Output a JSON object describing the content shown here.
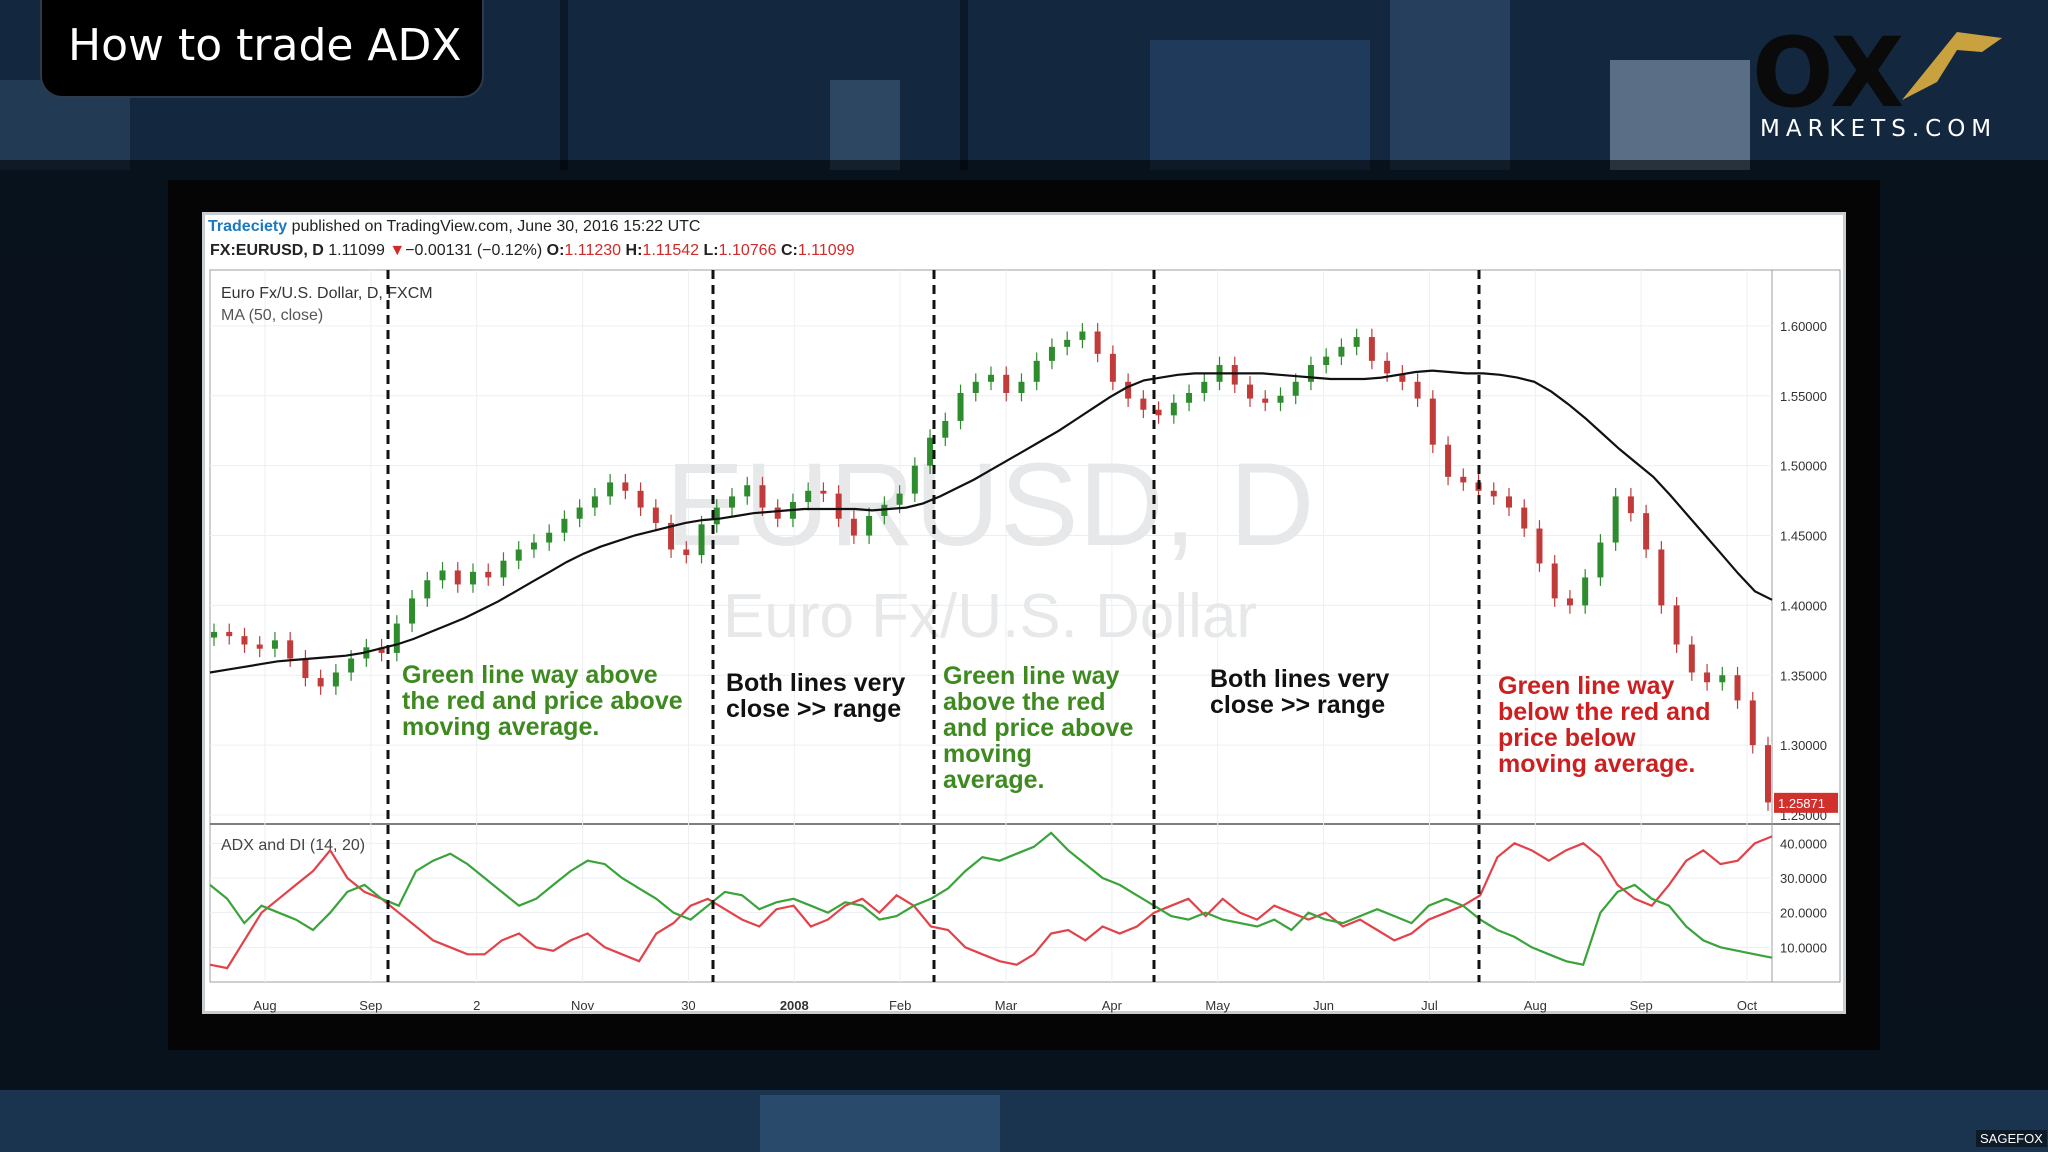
{
  "slide": {
    "title": "How to trade ADX",
    "logo_text": "OX",
    "logo_sub": "MARKETS.COM",
    "watermark_corner": "SAGEFOX"
  },
  "header": {
    "publisher": "Tradeciety",
    "published_line": " published on TradingView.com, June 30, 2016 15:22 UTC",
    "symbol": "FX:EURUSD, D",
    "last": "1.11099",
    "change": "−0.00131 (−0.12%)",
    "open_label": "O:",
    "open": "1.11230",
    "high_label": "H:",
    "high": "1.11542",
    "low_label": "L:",
    "low": "1.10766",
    "close_label": "C:",
    "close": "1.11099"
  },
  "chart_data": {
    "type": "line",
    "price_pane": {
      "legend_lines": [
        "Euro Fx/U.S. Dollar, D, FXCM",
        "MA (50, close)"
      ],
      "watermark_big": "EURUSD, D",
      "watermark_small": "Euro Fx/U.S. Dollar",
      "y_ticks": [
        "1.60000",
        "1.55000",
        "1.50000",
        "1.45000",
        "1.40000",
        "1.35000",
        "1.30000",
        "1.25000"
      ],
      "ylim": [
        1.245,
        1.64
      ],
      "last_price_label": "1.25871",
      "price_close": [
        1.381,
        1.378,
        1.372,
        1.369,
        1.375,
        1.362,
        1.348,
        1.342,
        1.352,
        1.362,
        1.37,
        1.366,
        1.387,
        1.405,
        1.418,
        1.425,
        1.415,
        1.424,
        1.42,
        1.432,
        1.44,
        1.445,
        1.452,
        1.462,
        1.47,
        1.478,
        1.488,
        1.482,
        1.47,
        1.459,
        1.44,
        1.436,
        1.458,
        1.47,
        1.478,
        1.486,
        1.47,
        1.462,
        1.474,
        1.482,
        1.48,
        1.462,
        1.45,
        1.464,
        1.472,
        1.48,
        1.5,
        1.52,
        1.532,
        1.552,
        1.56,
        1.565,
        1.552,
        1.56,
        1.575,
        1.585,
        1.59,
        1.596,
        1.58,
        1.56,
        1.548,
        1.54,
        1.536,
        1.545,
        1.552,
        1.56,
        1.572,
        1.558,
        1.548,
        1.545,
        1.55,
        1.56,
        1.572,
        1.578,
        1.585,
        1.592,
        1.575,
        1.566,
        1.56,
        1.548,
        1.515,
        1.492,
        1.488,
        1.482,
        1.478,
        1.47,
        1.455,
        1.43,
        1.405,
        1.4,
        1.42,
        1.445,
        1.478,
        1.466,
        1.44,
        1.4,
        1.372,
        1.352,
        1.345,
        1.35,
        1.332,
        1.3,
        1.259
      ],
      "ma50": [
        1.352,
        1.354,
        1.356,
        1.358,
        1.36,
        1.361,
        1.362,
        1.363,
        1.364,
        1.366,
        1.369,
        1.372,
        1.376,
        1.381,
        1.386,
        1.391,
        1.397,
        1.403,
        1.41,
        1.417,
        1.424,
        1.431,
        1.437,
        1.442,
        1.446,
        1.45,
        1.453,
        1.456,
        1.459,
        1.461,
        1.462,
        1.464,
        1.466,
        1.467,
        1.468,
        1.469,
        1.469,
        1.469,
        1.469,
        1.468,
        1.469,
        1.47,
        1.473,
        1.478,
        1.484,
        1.49,
        1.497,
        1.504,
        1.511,
        1.518,
        1.525,
        1.533,
        1.541,
        1.549,
        1.556,
        1.561,
        1.563,
        1.565,
        1.566,
        1.566,
        1.566,
        1.566,
        1.566,
        1.565,
        1.564,
        1.563,
        1.562,
        1.562,
        1.562,
        1.563,
        1.565,
        1.567,
        1.568,
        1.567,
        1.566,
        1.566,
        1.565,
        1.563,
        1.56,
        1.553,
        1.544,
        1.534,
        1.523,
        1.512,
        1.502,
        1.492,
        1.479,
        1.465,
        1.451,
        1.437,
        1.423,
        1.41,
        1.404
      ]
    },
    "adx_pane": {
      "label": "ADX and DI (14, 20)",
      "y_ticks": [
        "40.0000",
        "30.0000",
        "20.0000",
        "10.0000"
      ],
      "ylim": [
        0,
        45
      ],
      "di_plus_green": [
        28,
        24,
        17,
        22,
        20,
        18,
        15,
        20,
        26,
        28,
        24,
        22,
        32,
        35,
        37,
        34,
        30,
        26,
        22,
        24,
        28,
        32,
        35,
        34,
        30,
        27,
        24,
        20,
        18,
        22,
        26,
        25,
        21,
        23,
        24,
        22,
        20,
        23,
        22,
        18,
        19,
        22,
        24,
        27,
        32,
        36,
        35,
        37,
        39,
        43,
        38,
        34,
        30,
        28,
        25,
        22,
        19,
        18,
        20,
        18,
        17,
        16,
        18,
        15,
        20,
        18,
        17,
        19,
        21,
        19,
        17,
        22,
        24,
        22,
        18,
        15,
        13,
        10,
        8,
        6,
        5,
        20,
        26,
        28,
        24,
        22,
        16,
        12,
        10,
        9,
        8,
        7
      ],
      "di_minus_red": [
        5,
        4,
        12,
        20,
        24,
        28,
        32,
        38,
        30,
        26,
        24,
        20,
        16,
        12,
        10,
        8,
        8,
        12,
        14,
        10,
        9,
        12,
        14,
        10,
        8,
        6,
        14,
        17,
        22,
        24,
        21,
        18,
        16,
        21,
        22,
        16,
        18,
        22,
        24,
        20,
        25,
        22,
        16,
        15,
        10,
        8,
        6,
        5,
        8,
        14,
        15,
        12,
        16,
        14,
        16,
        20,
        22,
        24,
        19,
        24,
        20,
        18,
        22,
        20,
        18,
        20,
        16,
        18,
        15,
        12,
        14,
        18,
        20,
        22,
        25,
        36,
        40,
        38,
        35,
        38,
        40,
        36,
        28,
        24,
        22,
        28,
        35,
        38,
        34,
        35,
        40,
        42
      ]
    },
    "x_tick_labels": [
      "Aug",
      "Sep",
      "2",
      "Nov",
      "30",
      "2008",
      "Feb",
      "Mar",
      "Apr",
      "May",
      "Jun",
      "Jul",
      "Aug",
      "Sep",
      "Oct"
    ],
    "annotations": [
      {
        "text": [
          "Green line way above",
          "the red and price above",
          "moving average."
        ],
        "color": "#3e8a20"
      },
      {
        "text": [
          "Both lines very",
          "close >> range"
        ],
        "color": "#111111"
      },
      {
        "text": [
          "Green line way",
          "above the red",
          "and price above",
          "moving",
          "average."
        ],
        "color": "#3e8a20"
      },
      {
        "text": [
          "Both lines very",
          "close >> range"
        ],
        "color": "#111111"
      },
      {
        "text": [
          "Green line way",
          "below the red and",
          "price below",
          "moving average."
        ],
        "color": "#cc1f1f"
      }
    ],
    "colors": {
      "ma": "#111111",
      "di_plus": "#3aa33a",
      "di_minus": "#e2424a",
      "candle_up": "#2e8b2e",
      "candle_down": "#c23b3b"
    }
  }
}
